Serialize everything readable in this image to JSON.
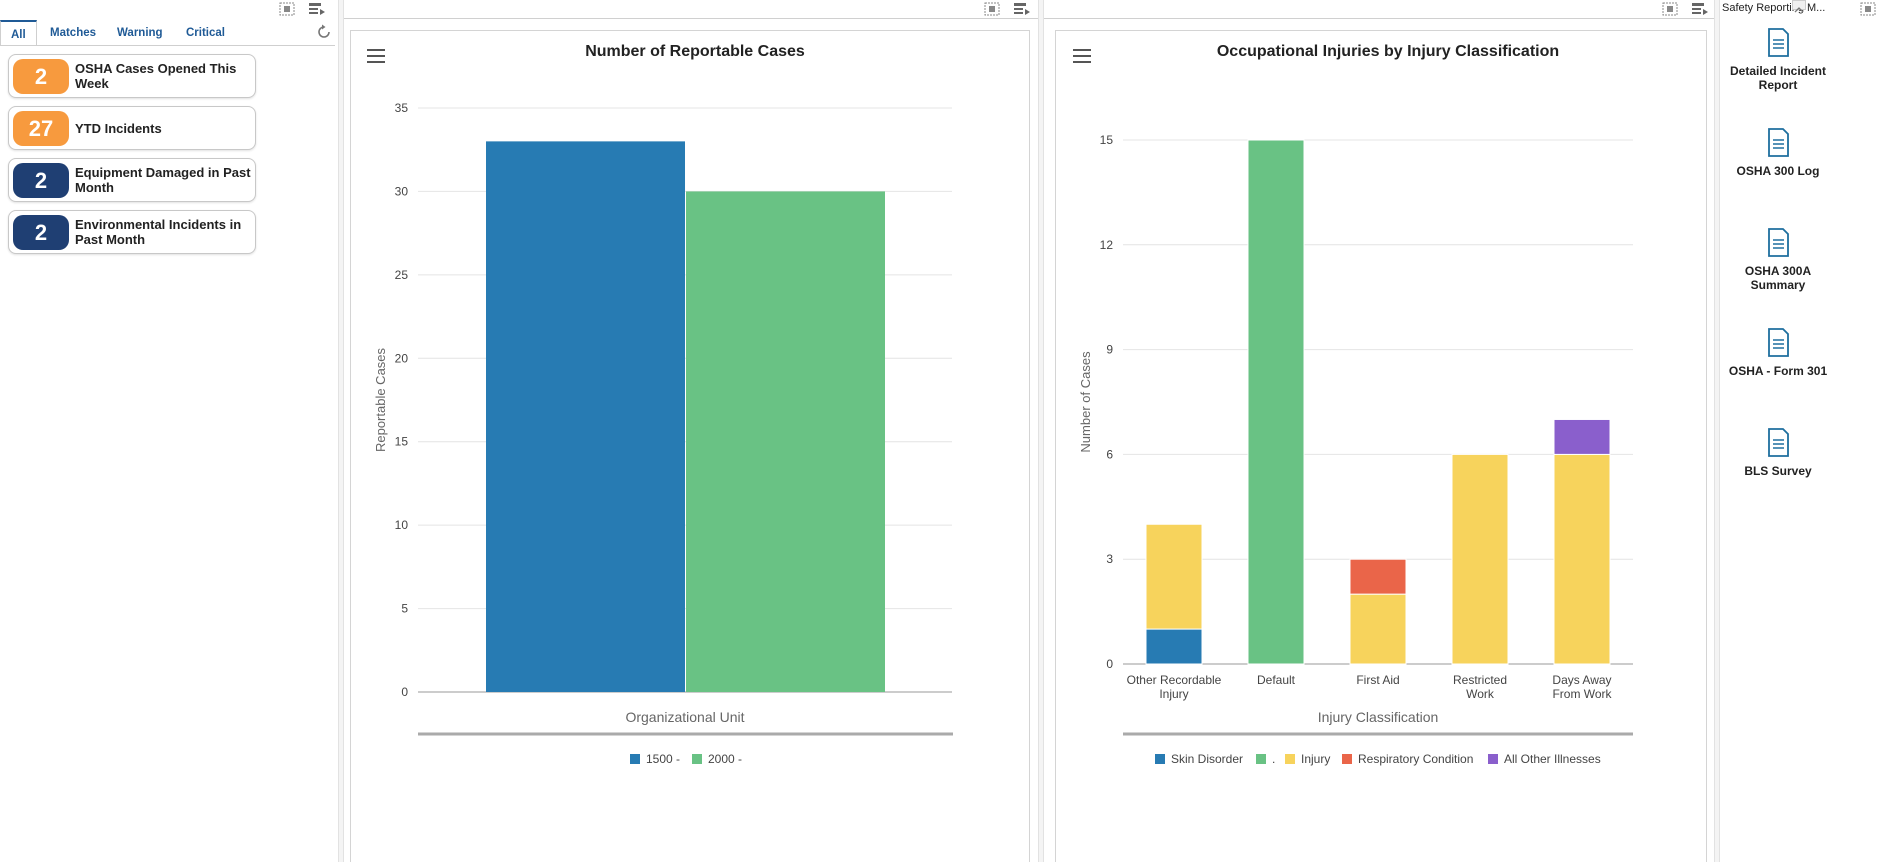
{
  "left": {
    "tabs": [
      "All",
      "Matches",
      "Warning",
      "Critical"
    ],
    "kpis": [
      {
        "value": "2",
        "label": "OSHA Cases Opened This Week",
        "color": "#f79a3e"
      },
      {
        "value": "27",
        "label": "YTD Incidents",
        "color": "#f79a3e"
      },
      {
        "value": "2",
        "label": "Equipment Damaged in Past Month",
        "color": "#1f3f73"
      },
      {
        "value": "2",
        "label": "Environmental Incidents in Past Month",
        "color": "#1f3f73"
      }
    ]
  },
  "chart1": {
    "title": "Number of Reportable Cases",
    "chart_data": {
      "type": "bar",
      "title": "Number of Reportable Cases",
      "xlabel": "Organizational Unit",
      "ylabel": "Reportable Cases",
      "ylim": [
        0,
        35
      ],
      "yticks": [
        0,
        5,
        10,
        15,
        20,
        25,
        30,
        35
      ],
      "series": [
        {
          "name": "1500 -",
          "value": 33,
          "color": "#277bb3"
        },
        {
          "name": "2000 -",
          "value": 30,
          "color": "#69c284"
        }
      ],
      "grid": true,
      "legend": "bottom"
    }
  },
  "chart2": {
    "title": "Occupational Injuries by Injury Classification",
    "chart_data": {
      "type": "bar",
      "stacked": true,
      "title": "Occupational Injuries by Injury Classification",
      "xlabel": "Injury Classification",
      "ylabel": "Number of Cases",
      "ylim": [
        0,
        15
      ],
      "yticks": [
        0,
        3,
        6,
        9,
        12,
        15
      ],
      "categories": [
        "Other Recordable Injury",
        "Default",
        "First Aid",
        "Restricted Work",
        "Days Away From Work"
      ],
      "series": [
        {
          "name": "Skin Disorder",
          "color": "#277bb3",
          "values": [
            1,
            0,
            0,
            0,
            0
          ]
        },
        {
          "name": ".",
          "color": "#69c284",
          "values": [
            0,
            15,
            0,
            0,
            0
          ]
        },
        {
          "name": "Injury",
          "color": "#f7d35c",
          "values": [
            3,
            0,
            2,
            6,
            6
          ]
        },
        {
          "name": "Respiratory Condition",
          "color": "#ea6549",
          "values": [
            0,
            0,
            1,
            0,
            0
          ]
        },
        {
          "name": "All Other Illnesses",
          "color": "#8a5fcc",
          "values": [
            0,
            0,
            0,
            0,
            1
          ]
        }
      ],
      "grid": true,
      "legend": "bottom"
    }
  },
  "right": {
    "header": "Safety Reporting M...",
    "links": [
      "Detailed Incident Report",
      "OSHA 300 Log",
      "OSHA 300A Summary",
      "OSHA - Form 301",
      "BLS Survey"
    ]
  }
}
